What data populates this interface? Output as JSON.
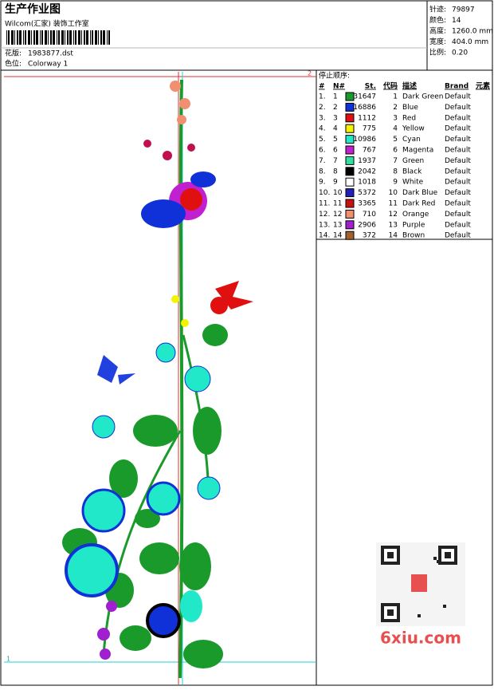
{
  "header": {
    "title": "生产作业图",
    "subtitle": "Wilcom(汇家) 装饰工作室",
    "design_label": "花版:",
    "design": "1983877.dst",
    "colorway_label": "色位:",
    "colorway": "Colorway 1"
  },
  "stats": [
    {
      "label": "针迹:",
      "value": "79897"
    },
    {
      "label": "颜色:",
      "value": "14"
    },
    {
      "label": "高度:",
      "value": "1260.0 mm"
    },
    {
      "label": "宽度:",
      "value": "404.0 mm"
    },
    {
      "label": "比例:",
      "value": "0.20"
    }
  ],
  "table": {
    "caption": "停止顺序:",
    "columns": [
      "#",
      "N#",
      "St.",
      "代码",
      "描述",
      "Brand",
      "元素"
    ],
    "rows": [
      {
        "order": "1.",
        "needle": "1",
        "color": "#1a9a2a",
        "stitches": "31647",
        "code": "1",
        "description": "Dark Green",
        "brand": "Default"
      },
      {
        "order": "2.",
        "needle": "2",
        "color": "#1030d8",
        "stitches": "16886",
        "code": "2",
        "description": "Blue",
        "brand": "Default"
      },
      {
        "order": "3.",
        "needle": "3",
        "color": "#e01010",
        "stitches": "1112",
        "code": "3",
        "description": "Red",
        "brand": "Default"
      },
      {
        "order": "4.",
        "needle": "4",
        "color": "#f4f400",
        "stitches": "775",
        "code": "4",
        "description": "Yellow",
        "brand": "Default"
      },
      {
        "order": "5.",
        "needle": "5",
        "color": "#20e8c8",
        "stitches": "10986",
        "code": "5",
        "description": "Cyan",
        "brand": "Default"
      },
      {
        "order": "6.",
        "needle": "6",
        "color": "#c020d0",
        "stitches": "767",
        "code": "6",
        "description": "Magenta",
        "brand": "Default"
      },
      {
        "order": "7.",
        "needle": "7",
        "color": "#30e0a0",
        "stitches": "1937",
        "code": "7",
        "description": "Green",
        "brand": "Default"
      },
      {
        "order": "8.",
        "needle": "8",
        "color": "#000000",
        "stitches": "2042",
        "code": "8",
        "description": "Black",
        "brand": "Default"
      },
      {
        "order": "9.",
        "needle": "9",
        "color": "#ffffff",
        "stitches": "1018",
        "code": "9",
        "description": "White",
        "brand": "Default"
      },
      {
        "order": "10.",
        "needle": "10",
        "color": "#2020b8",
        "stitches": "5372",
        "code": "10",
        "description": "Dark Blue",
        "brand": "Default"
      },
      {
        "order": "11.",
        "needle": "11",
        "color": "#c81010",
        "stitches": "3365",
        "code": "11",
        "description": "Dark Red",
        "brand": "Default"
      },
      {
        "order": "12.",
        "needle": "12",
        "color": "#f09070",
        "stitches": "710",
        "code": "12",
        "description": "Orange",
        "brand": "Default"
      },
      {
        "order": "13.",
        "needle": "13",
        "color": "#a020d0",
        "stitches": "2906",
        "code": "13",
        "description": "Purple",
        "brand": "Default"
      },
      {
        "order": "14.",
        "needle": "14",
        "color": "#a06030",
        "stitches": "372",
        "code": "14",
        "description": "Brown",
        "brand": "Default"
      }
    ]
  },
  "canvas": {
    "top_marker": "2",
    "bottom_marker": "1"
  },
  "watermark": "6xiu.com"
}
